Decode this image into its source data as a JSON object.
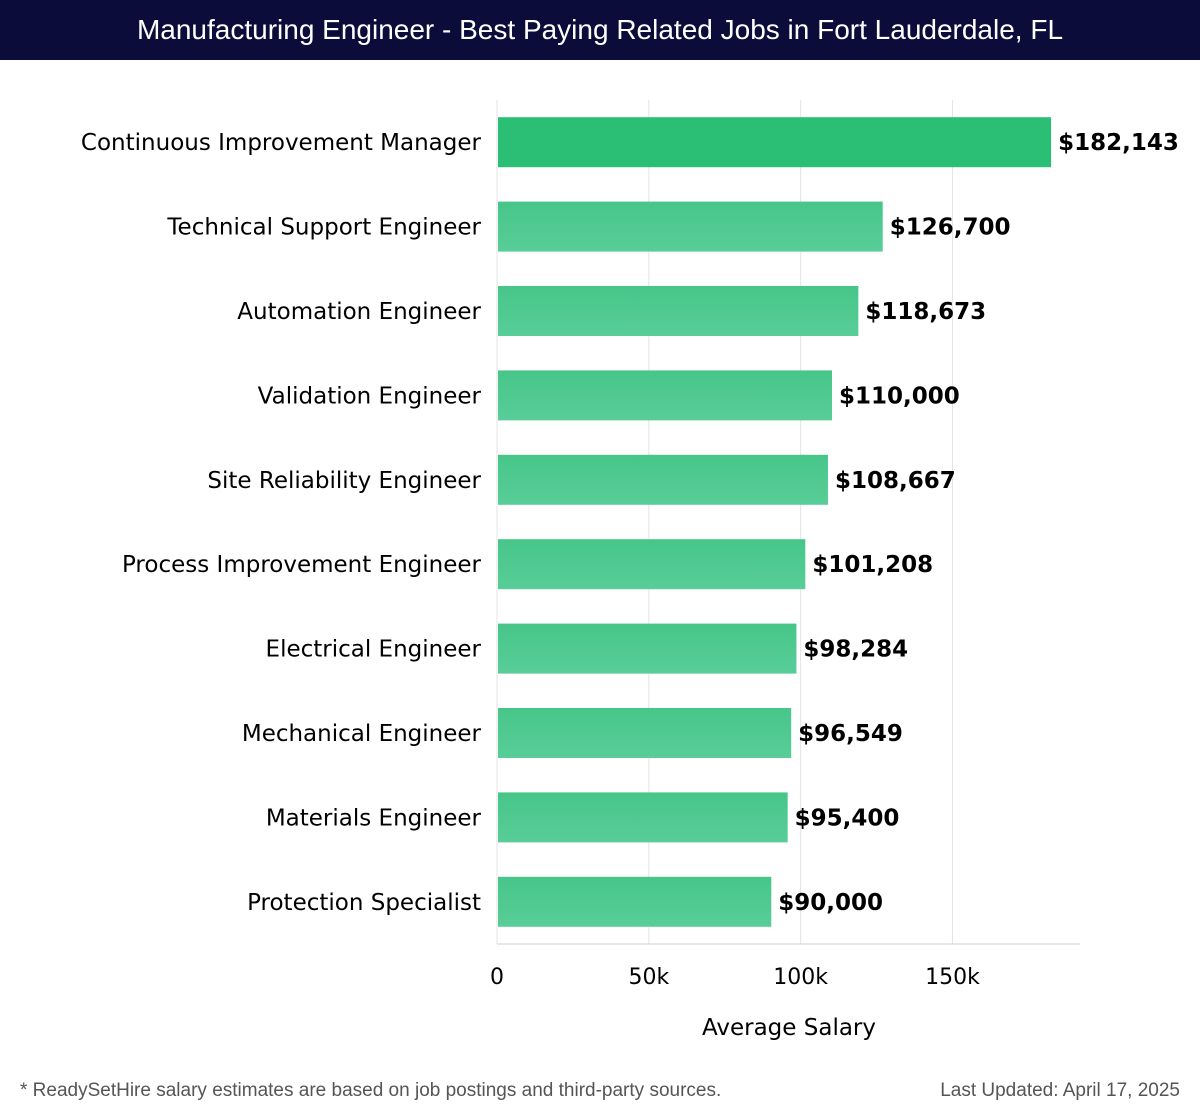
{
  "header": {
    "title": "Manufacturing Engineer - Best Paying Related Jobs in Fort Lauderdale, FL"
  },
  "chart_data": {
    "type": "bar",
    "orientation": "horizontal",
    "categories": [
      "Continuous Improvement Manager",
      "Technical Support Engineer",
      "Automation Engineer",
      "Validation Engineer",
      "Site Reliability Engineer",
      "Process Improvement Engineer",
      "Electrical Engineer",
      "Mechanical Engineer",
      "Materials Engineer",
      "Protection Specialist"
    ],
    "values": [
      182143,
      126700,
      118673,
      110000,
      108667,
      101208,
      98284,
      96549,
      95400,
      90000
    ],
    "value_labels": [
      "$182,143",
      "$126,700",
      "$118,673",
      "$110,000",
      "$108,667",
      "$101,208",
      "$98,284",
      "$96,549",
      "$95,400",
      "$90,000"
    ],
    "xlabel": "Average Salary",
    "xlim": [
      0,
      192000
    ],
    "xticks": [
      0,
      50000,
      100000,
      150000
    ],
    "xtick_labels": [
      "0",
      "50k",
      "100k",
      "150k"
    ],
    "grid": true,
    "colors": {
      "top_bar": "#2bbf75",
      "bar_gradient_start": "#47c689",
      "bar_gradient_end": "#58cd98",
      "grid": "#e3e3e3",
      "axis": "#d0d0d0",
      "text": "#000000"
    }
  },
  "footer": {
    "note": "* ReadySetHire salary estimates are based on job postings and third-party sources.",
    "updated": "Last Updated: April 17, 2025"
  }
}
